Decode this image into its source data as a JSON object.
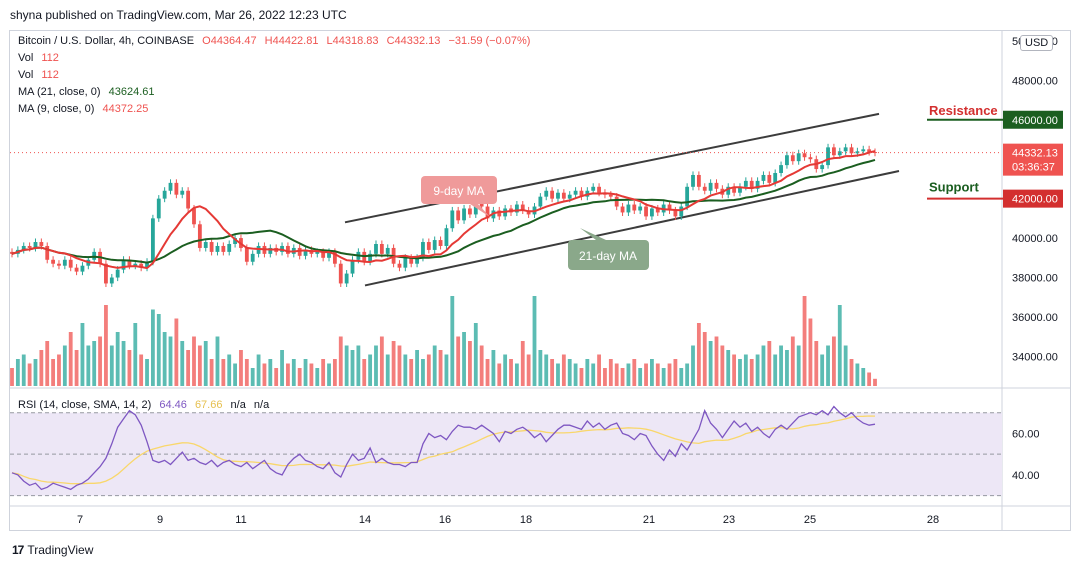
{
  "caption": "shyna published on TradingView.com, Mar 26, 2022 12:23 UTC",
  "brand": {
    "logo_text": "17",
    "name": "TradingView"
  },
  "legend": {
    "symbol": "Bitcoin / U.S. Dollar, 4h, COINBASE",
    "open": "O44364.47",
    "high": "H44422.81",
    "low": "L44318.83",
    "close": "C44332.13",
    "change": "−31.59 (−0.07%)",
    "vol_label": "Vol",
    "vol_value_1": "112",
    "vol_value_2": "112",
    "ma21_label": "MA (21, close, 0)",
    "ma21_value": "43624.61",
    "ma9_label": "MA (9, close, 0)",
    "ma9_value": "44372.25"
  },
  "currency": "USD",
  "price_axis": {
    "ticks": [
      "50000.00",
      "48000.00",
      "46000.00",
      "44000.00",
      "42000.00",
      "40000.00",
      "38000.00",
      "36000.00",
      "34000.00"
    ],
    "current_price": "44332.13",
    "countdown": "03:36:37"
  },
  "annotations": {
    "resistance": "Resistance",
    "support": "Support",
    "ma9_callout": "9-day MA",
    "ma21_callout": "21-day MA",
    "resistance_tag": "46000.00",
    "support_tag": "42000.00"
  },
  "rsi": {
    "label": "RSI (14, close, SMA, 14, 2)",
    "value_1": "64.46",
    "value_2": "67.66",
    "value_3": "n/a",
    "value_4": "n/a",
    "axis_ticks": [
      "60.00",
      "40.00"
    ]
  },
  "time_axis": {
    "labels": [
      "7",
      "9",
      "11",
      "14",
      "16",
      "18",
      "21",
      "23",
      "25",
      "28"
    ]
  },
  "colors": {
    "up": "#26a69a",
    "down": "#ef5350",
    "ma9": "#e53935",
    "ma21": "#1b5e20",
    "channel": "#3c3c3c",
    "rsi_line": "#7e57c2",
    "rsi_sma": "#f9d76b",
    "rsi_band": "#ede7f6"
  },
  "chart_data": {
    "type": "candlestick",
    "title": "Bitcoin / U.S. Dollar, 4h, COINBASE",
    "ylim": [
      32500,
      50500
    ],
    "x_tick_labels": [
      "7",
      "9",
      "11",
      "14",
      "16",
      "18",
      "21",
      "23",
      "25",
      "28"
    ],
    "channel_upper": [
      [
        40800,
        46300
      ]
    ],
    "channel_lower": [
      [
        37600,
        43400
      ]
    ],
    "resistance_level": 46000,
    "support_level": 42000,
    "rsi_ylim": [
      25,
      80
    ],
    "rsi_levels": [
      70,
      50,
      30
    ],
    "candles": [
      {
        "o": 39300,
        "c": 39200
      },
      {
        "o": 39200,
        "c": 39400
      },
      {
        "o": 39400,
        "c": 39600
      },
      {
        "o": 39600,
        "c": 39500
      },
      {
        "o": 39500,
        "c": 39800
      },
      {
        "o": 39800,
        "c": 39600
      },
      {
        "o": 39600,
        "c": 38900
      },
      {
        "o": 38900,
        "c": 38700
      },
      {
        "o": 38700,
        "c": 38600
      },
      {
        "o": 38600,
        "c": 38900
      },
      {
        "o": 38900,
        "c": 38500
      },
      {
        "o": 38500,
        "c": 38300
      },
      {
        "o": 38300,
        "c": 38600
      },
      {
        "o": 38600,
        "c": 38900
      },
      {
        "o": 38900,
        "c": 39300
      },
      {
        "o": 39300,
        "c": 38700
      },
      {
        "o": 38700,
        "c": 37700
      },
      {
        "o": 37700,
        "c": 38000
      },
      {
        "o": 38000,
        "c": 38400
      },
      {
        "o": 38400,
        "c": 38900
      },
      {
        "o": 38900,
        "c": 38600
      },
      {
        "o": 38600,
        "c": 38700
      },
      {
        "o": 38700,
        "c": 38500
      },
      {
        "o": 38500,
        "c": 38800
      },
      {
        "o": 38800,
        "c": 41000
      },
      {
        "o": 41000,
        "c": 42000
      },
      {
        "o": 42000,
        "c": 42400
      },
      {
        "o": 42400,
        "c": 42800
      },
      {
        "o": 42800,
        "c": 42200
      },
      {
        "o": 42200,
        "c": 42400
      },
      {
        "o": 42400,
        "c": 41500
      },
      {
        "o": 41500,
        "c": 40700
      },
      {
        "o": 40700,
        "c": 39500
      },
      {
        "o": 39500,
        "c": 39800
      },
      {
        "o": 39800,
        "c": 39300
      },
      {
        "o": 39300,
        "c": 39600
      },
      {
        "o": 39600,
        "c": 39300
      },
      {
        "o": 39300,
        "c": 39700
      },
      {
        "o": 39700,
        "c": 40000
      },
      {
        "o": 40000,
        "c": 39500
      },
      {
        "o": 39500,
        "c": 38800
      },
      {
        "o": 38800,
        "c": 39200
      },
      {
        "o": 39200,
        "c": 39600
      },
      {
        "o": 39600,
        "c": 39200
      },
      {
        "o": 39200,
        "c": 39500
      },
      {
        "o": 39500,
        "c": 39300
      },
      {
        "o": 39300,
        "c": 39600
      },
      {
        "o": 39600,
        "c": 39200
      },
      {
        "o": 39200,
        "c": 39500
      },
      {
        "o": 39500,
        "c": 39100
      },
      {
        "o": 39100,
        "c": 39400
      },
      {
        "o": 39400,
        "c": 39200
      },
      {
        "o": 39200,
        "c": 39300
      },
      {
        "o": 39300,
        "c": 39000
      },
      {
        "o": 39000,
        "c": 39300
      },
      {
        "o": 39300,
        "c": 38700
      },
      {
        "o": 38700,
        "c": 37700
      },
      {
        "o": 37700,
        "c": 38200
      },
      {
        "o": 38200,
        "c": 38900
      },
      {
        "o": 38900,
        "c": 39300
      },
      {
        "o": 39300,
        "c": 38800
      },
      {
        "o": 38800,
        "c": 39200
      },
      {
        "o": 39200,
        "c": 39700
      },
      {
        "o": 39700,
        "c": 39200
      },
      {
        "o": 39200,
        "c": 39500
      },
      {
        "o": 39500,
        "c": 38700
      },
      {
        "o": 38700,
        "c": 38500
      },
      {
        "o": 38500,
        "c": 39000
      },
      {
        "o": 39000,
        "c": 38700
      },
      {
        "o": 38700,
        "c": 39000
      },
      {
        "o": 39000,
        "c": 39800
      },
      {
        "o": 39800,
        "c": 39400
      },
      {
        "o": 39400,
        "c": 39900
      },
      {
        "o": 39900,
        "c": 39600
      },
      {
        "o": 39600,
        "c": 40500
      },
      {
        "o": 40500,
        "c": 41400
      },
      {
        "o": 41400,
        "c": 40900
      },
      {
        "o": 40900,
        "c": 41500
      },
      {
        "o": 41500,
        "c": 41200
      },
      {
        "o": 41200,
        "c": 41800
      },
      {
        "o": 41800,
        "c": 41600
      },
      {
        "o": 41600,
        "c": 41000
      },
      {
        "o": 41000,
        "c": 41400
      },
      {
        "o": 41400,
        "c": 41100
      },
      {
        "o": 41100,
        "c": 41500
      },
      {
        "o": 41500,
        "c": 41300
      },
      {
        "o": 41300,
        "c": 41700
      },
      {
        "o": 41700,
        "c": 41400
      },
      {
        "o": 41400,
        "c": 41200
      },
      {
        "o": 41200,
        "c": 41600
      },
      {
        "o": 41600,
        "c": 42100
      },
      {
        "o": 42100,
        "c": 42400
      },
      {
        "o": 42400,
        "c": 42000
      },
      {
        "o": 42000,
        "c": 42300
      },
      {
        "o": 42300,
        "c": 42000
      },
      {
        "o": 42000,
        "c": 42200
      },
      {
        "o": 42200,
        "c": 42400
      },
      {
        "o": 42400,
        "c": 42100
      },
      {
        "o": 42100,
        "c": 42400
      },
      {
        "o": 42400,
        "c": 42600
      },
      {
        "o": 42600,
        "c": 42300
      },
      {
        "o": 42300,
        "c": 42200
      },
      {
        "o": 42200,
        "c": 42100
      },
      {
        "o": 42100,
        "c": 41600
      },
      {
        "o": 41600,
        "c": 41300
      },
      {
        "o": 41300,
        "c": 41700
      },
      {
        "o": 41700,
        "c": 41400
      },
      {
        "o": 41400,
        "c": 41600
      },
      {
        "o": 41600,
        "c": 41100
      },
      {
        "o": 41100,
        "c": 41500
      },
      {
        "o": 41500,
        "c": 41300
      },
      {
        "o": 41300,
        "c": 41700
      },
      {
        "o": 41700,
        "c": 41400
      },
      {
        "o": 41400,
        "c": 41100
      },
      {
        "o": 41100,
        "c": 41600
      },
      {
        "o": 41600,
        "c": 42600
      },
      {
        "o": 42600,
        "c": 43200
      },
      {
        "o": 43200,
        "c": 42600
      },
      {
        "o": 42600,
        "c": 42400
      },
      {
        "o": 42400,
        "c": 42800
      },
      {
        "o": 42800,
        "c": 42500
      },
      {
        "o": 42500,
        "c": 42200
      },
      {
        "o": 42200,
        "c": 42600
      },
      {
        "o": 42600,
        "c": 42300
      },
      {
        "o": 42300,
        "c": 42600
      },
      {
        "o": 42600,
        "c": 42900
      },
      {
        "o": 42900,
        "c": 42500
      },
      {
        "o": 42500,
        "c": 42900
      },
      {
        "o": 42900,
        "c": 43200
      },
      {
        "o": 43200,
        "c": 42800
      },
      {
        "o": 42800,
        "c": 43300
      },
      {
        "o": 43300,
        "c": 43700
      },
      {
        "o": 43700,
        "c": 44200
      },
      {
        "o": 44200,
        "c": 43900
      },
      {
        "o": 43900,
        "c": 44300
      },
      {
        "o": 44300,
        "c": 44100
      },
      {
        "o": 44100,
        "c": 44000
      },
      {
        "o": 44000,
        "c": 43500
      },
      {
        "o": 43500,
        "c": 43700
      },
      {
        "o": 43700,
        "c": 44600
      },
      {
        "o": 44600,
        "c": 44200
      },
      {
        "o": 44200,
        "c": 44400
      },
      {
        "o": 44400,
        "c": 44600
      },
      {
        "o": 44600,
        "c": 44300
      },
      {
        "o": 44300,
        "c": 44400
      },
      {
        "o": 44400,
        "c": 44500
      },
      {
        "o": 44500,
        "c": 44364
      },
      {
        "o": 44364,
        "c": 44332
      }
    ],
    "volume_rel": [
      0.2,
      0.3,
      0.35,
      0.25,
      0.3,
      0.4,
      0.5,
      0.3,
      0.35,
      0.45,
      0.6,
      0.4,
      0.7,
      0.45,
      0.5,
      0.55,
      0.9,
      0.45,
      0.6,
      0.5,
      0.4,
      0.7,
      0.35,
      0.3,
      0.85,
      0.8,
      0.6,
      0.55,
      0.75,
      0.5,
      0.4,
      0.55,
      0.45,
      0.5,
      0.3,
      0.55,
      0.3,
      0.35,
      0.25,
      0.4,
      0.3,
      0.2,
      0.35,
      0.25,
      0.3,
      0.2,
      0.4,
      0.25,
      0.3,
      0.2,
      0.3,
      0.25,
      0.2,
      0.3,
      0.25,
      0.3,
      0.55,
      0.45,
      0.4,
      0.45,
      0.3,
      0.35,
      0.45,
      0.55,
      0.35,
      0.5,
      0.45,
      0.35,
      0.3,
      0.4,
      0.3,
      0.35,
      0.45,
      0.4,
      0.35,
      1.0,
      0.55,
      0.6,
      0.5,
      0.7,
      0.45,
      0.3,
      0.4,
      0.25,
      0.35,
      0.3,
      0.25,
      0.5,
      0.35,
      1.0,
      0.4,
      0.35,
      0.3,
      0.25,
      0.35,
      0.3,
      0.25,
      0.2,
      0.3,
      0.25,
      0.35,
      0.2,
      0.3,
      0.25,
      0.2,
      0.25,
      0.3,
      0.2,
      0.25,
      0.3,
      0.25,
      0.2,
      0.25,
      0.3,
      0.2,
      0.25,
      0.45,
      0.7,
      0.6,
      0.5,
      0.55,
      0.45,
      0.4,
      0.35,
      0.3,
      0.35,
      0.3,
      0.35,
      0.45,
      0.5,
      0.35,
      0.45,
      0.4,
      0.55,
      0.45,
      1.0,
      0.75,
      0.5,
      0.35,
      0.45,
      0.55,
      0.9,
      0.45,
      0.3,
      0.25,
      0.2,
      0.15,
      0.08
    ],
    "rsi": [
      41,
      40,
      37,
      35,
      36,
      33,
      34,
      36,
      35,
      34,
      33,
      35,
      36,
      38,
      41,
      44,
      48,
      55,
      63,
      67,
      71,
      69,
      64,
      56,
      47,
      46,
      47,
      45,
      48,
      51,
      47,
      48,
      46,
      45,
      47,
      44,
      46,
      47,
      45,
      44,
      46,
      43,
      45,
      47,
      43,
      41,
      40,
      45,
      48,
      50,
      47,
      46,
      44,
      43,
      46,
      41,
      39,
      45,
      50,
      47,
      48,
      53,
      46,
      48,
      46,
      45,
      45,
      44,
      46,
      46,
      55,
      60,
      58,
      59,
      57,
      61,
      64,
      63,
      63,
      62,
      64,
      62,
      60,
      56,
      61,
      60,
      62,
      63,
      61,
      58,
      60,
      56,
      59,
      62,
      64,
      64,
      63,
      62,
      66,
      63,
      65,
      62,
      64,
      65,
      60,
      59,
      57,
      60,
      59,
      54,
      50,
      47,
      52,
      49,
      55,
      52,
      57,
      62,
      71,
      65,
      62,
      58,
      62,
      66,
      63,
      65,
      61,
      63,
      60,
      58,
      62,
      64,
      62,
      65,
      68,
      69,
      70,
      69,
      71,
      69,
      73,
      70,
      68,
      70,
      67,
      65,
      64,
      64.46
    ],
    "rsi_sma_start": 36
  }
}
